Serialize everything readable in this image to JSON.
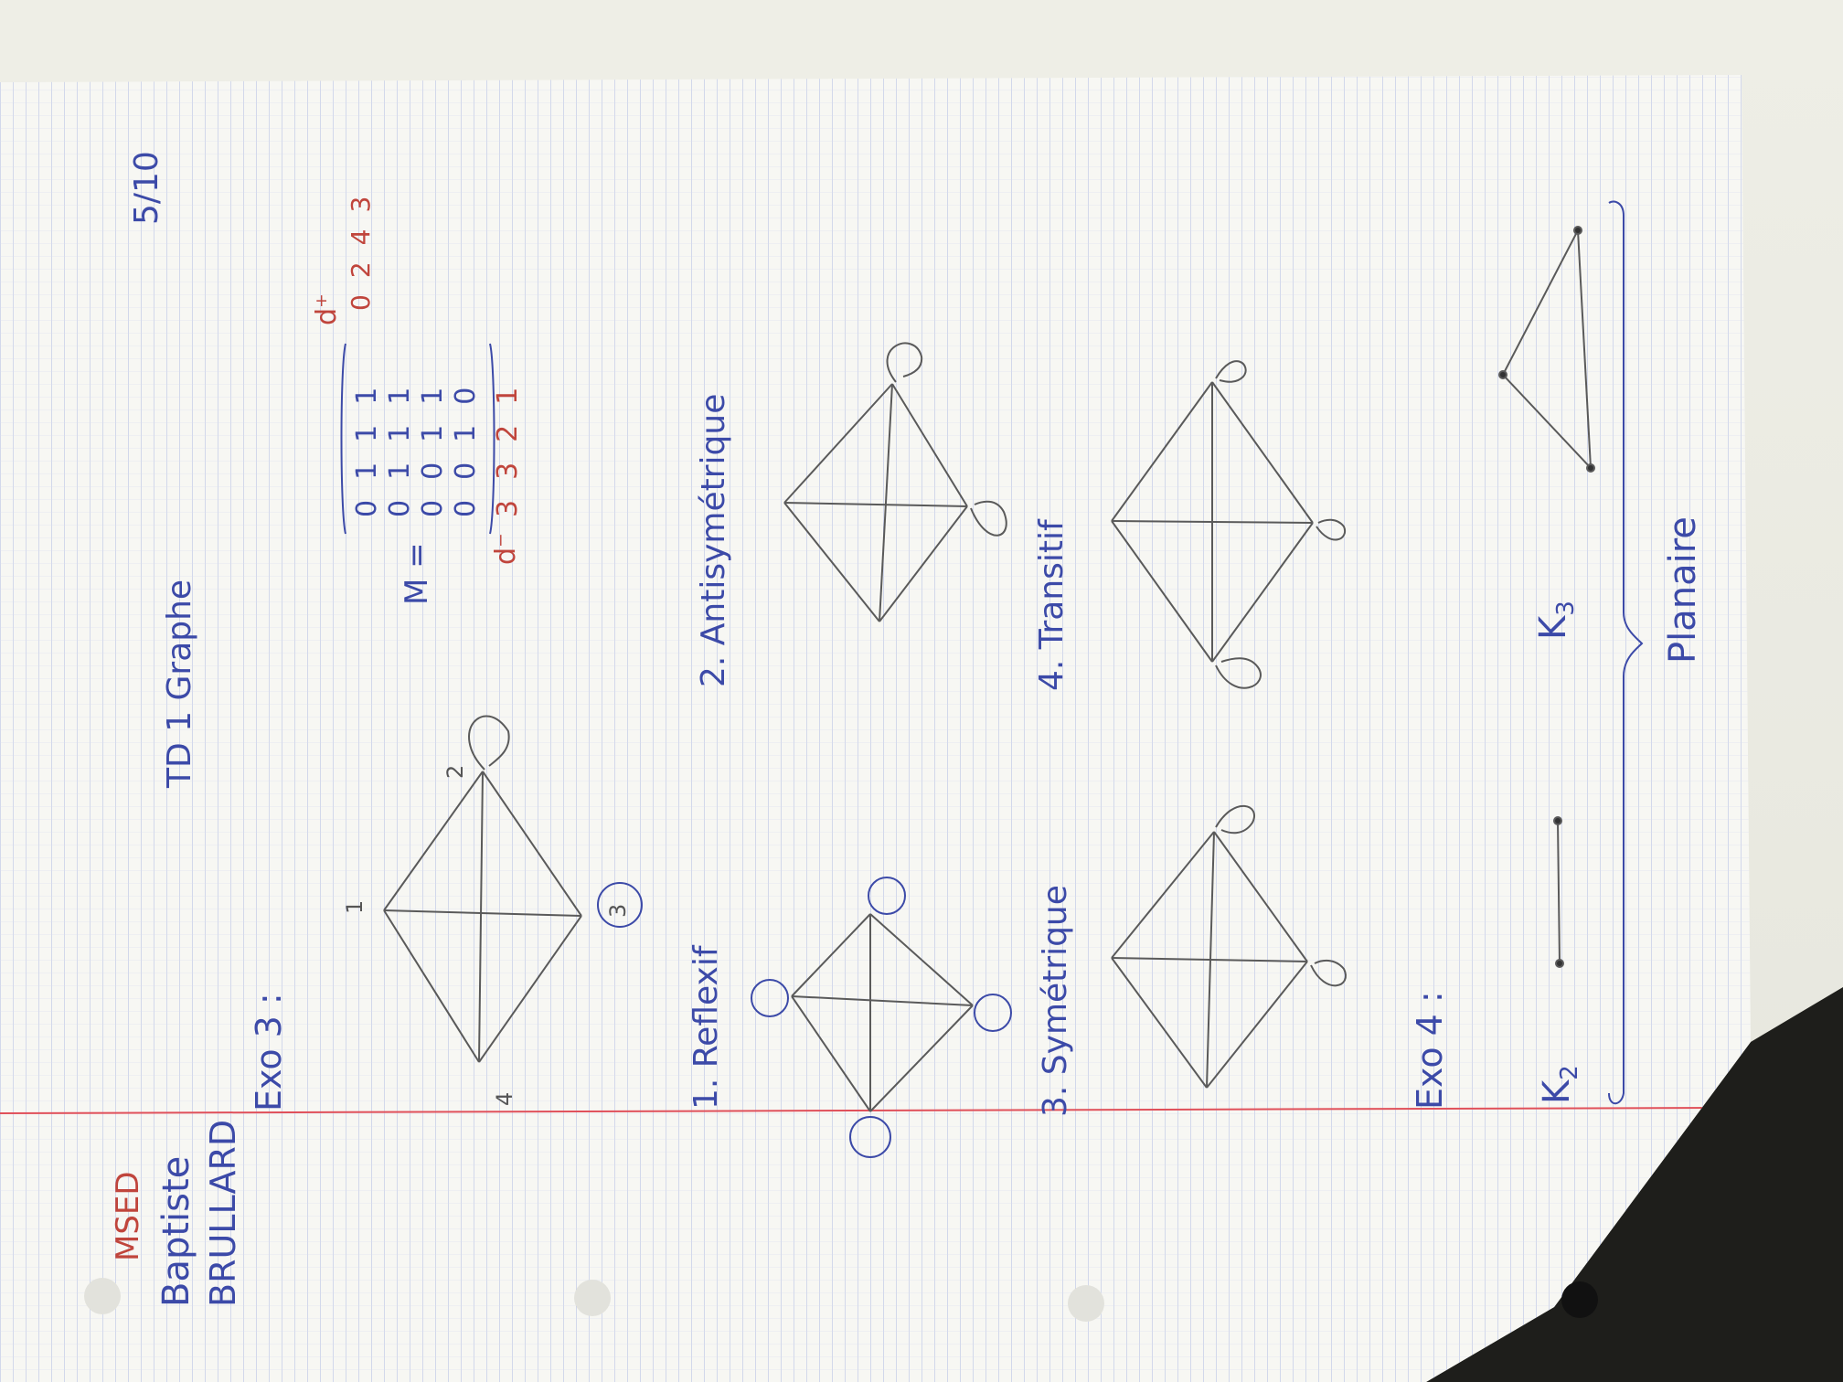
{
  "header": {
    "class_code": "MSED",
    "student_first": "Baptiste",
    "student_last": "BRULLARD",
    "title": "TD 1 Graphe",
    "date": "5/10"
  },
  "exo3": {
    "label": "Exo 3 :",
    "matrix_label": "M =",
    "matrix_rows": [
      [
        "0",
        "1",
        "1",
        "1"
      ],
      [
        "0",
        "1",
        "1",
        "1"
      ],
      [
        "0",
        "0",
        "1",
        "1"
      ],
      [
        "0",
        "0",
        "1",
        "0"
      ]
    ],
    "d_plus_label": "d⁺",
    "d_plus_values": [
      "0",
      "2",
      "4",
      "3"
    ],
    "d_minus_label": "d⁻",
    "d_minus_values": [
      "3",
      "3",
      "2",
      "1"
    ],
    "sub1": "1. Reflexif",
    "sub2": "2. Antisymétrique",
    "sub3": "3. Symétrique",
    "sub4": "4. Transitif",
    "node_labels": [
      "1",
      "2",
      "3",
      "4"
    ]
  },
  "exo4": {
    "label": "Exo 4 :",
    "k2": "K",
    "k2_sub": "2",
    "k3": "K",
    "k3_sub": "3",
    "planaire": "Planaire"
  },
  "colors": {
    "ink_blue": "#3c4aa8",
    "ink_red": "#c0453c",
    "pencil": "#5a5a5a",
    "grid_blue": "#b9c2e6",
    "margin_red": "#e0505a"
  }
}
